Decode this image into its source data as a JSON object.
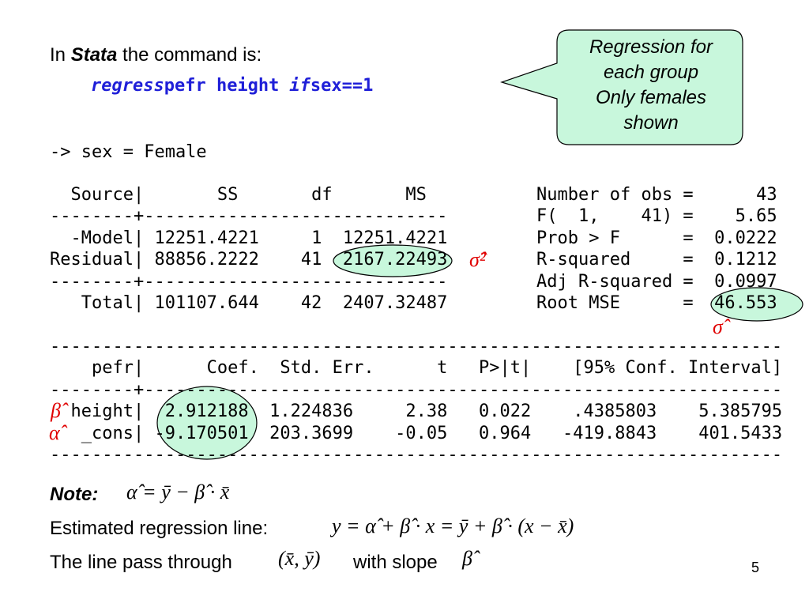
{
  "intro": {
    "prefix": "In",
    "emphasis": "Stata",
    "suffix": "the command is:"
  },
  "command": {
    "verb": "regress",
    "vars": "pefr height",
    "keyword": "if",
    "condition": "sex==1"
  },
  "callout": {
    "lines": [
      "Regression for",
      "each group",
      "Only females",
      "shown"
    ]
  },
  "output": {
    "header": "-> sex = Female",
    "anova": [
      "  Source|       SS       df       MS",
      "--------+-----------------------------",
      "  -Model| 12251.4221     1  12251.4221",
      "Residual| 88856.2222    41  2167.22493",
      "--------+-----------------------------",
      "   Total| 101107.644    42  2407.32487"
    ],
    "model_stats": [
      "Number of obs =      43",
      "F(  1,    41) =    5.65",
      "Prob > F      =  0.0222",
      "R-squared     =  0.1212",
      "Adj R-squared =  0.0997",
      "Root MSE      =  46.553"
    ],
    "coef_table": [
      "----------------------------------------------------------------------",
      "    pefr|      Coef.  Std. Err.      t   P>|t|    [95% Conf. Interval]",
      "--------+-------------------------------------------------------------",
      "  height|  2.912188  1.224836     2.38   0.022    .4385803    5.385795",
      "   _cons| -9.170501  203.3699    -0.05   0.964   -419.8843    401.5433",
      "----------------------------------------------------------------------"
    ]
  },
  "annotations": {
    "sigma_squared": "σ̂²",
    "sigma": "σ̂",
    "beta": "β̂",
    "alpha": "α̂"
  },
  "notes": {
    "label": "Note:",
    "alpha_formula": "α̂ = ȳ − β̂ · x̄",
    "line_label": "Estimated regression line:",
    "line_formula": "y = α̂ + β̂ · x = ȳ + β̂ · (x − x̄)",
    "pass_label": "The line pass through",
    "point": "(x̄, ȳ)",
    "slope_label": "with slope",
    "slope": "β̂"
  },
  "slide_number": 5
}
